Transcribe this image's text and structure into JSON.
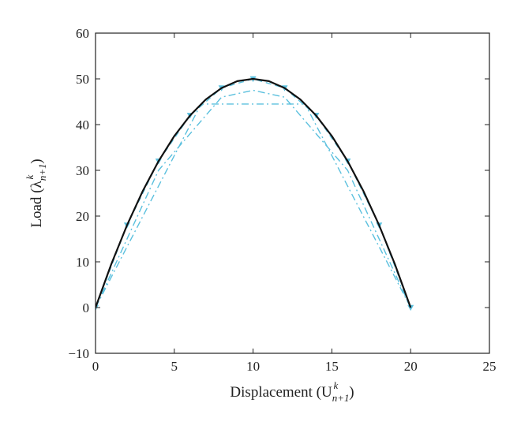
{
  "chart_data": {
    "type": "line",
    "title": "",
    "xlabel": {
      "main": "Displacement (U",
      "sub": "n+1",
      "sup": "k",
      "close": ")"
    },
    "ylabel": {
      "main": "Load (λ",
      "sub": "n+1",
      "sup": "k",
      "close": ")"
    },
    "xlim": [
      0,
      25
    ],
    "ylim": [
      -10,
      60
    ],
    "xticks": [
      "0",
      "5",
      "10",
      "15",
      "20",
      "25"
    ],
    "yticks": [
      "−10",
      "0",
      "10",
      "20",
      "30",
      "40",
      "50",
      "60"
    ],
    "grid": false,
    "legend": "none",
    "series": [
      {
        "style": "solid",
        "color": "#111111",
        "x": [
          0,
          1,
          2,
          3,
          4,
          5,
          6,
          7,
          8,
          9,
          10,
          11,
          12,
          13,
          14,
          15,
          16,
          17,
          18,
          19,
          20
        ],
        "y": [
          0,
          9.5,
          18,
          25.5,
          32,
          37.5,
          42,
          45.5,
          48,
          49.5,
          50,
          49.5,
          48,
          45.5,
          42,
          37.5,
          32,
          25.5,
          18,
          9.5,
          0
        ]
      },
      {
        "style": "dashed",
        "color": "#5bc0de",
        "marker": "triangle-down",
        "x": [
          0,
          2,
          4,
          6,
          8,
          10,
          12,
          14,
          16,
          18,
          20
        ],
        "y": [
          0,
          18,
          32,
          42,
          48,
          50,
          48,
          42,
          32,
          18,
          0
        ]
      },
      {
        "style": "dashdot",
        "color": "#5bc0de",
        "x": [
          0,
          4,
          8,
          10,
          12,
          16,
          20
        ],
        "y": [
          0,
          30,
          46,
          47.5,
          46,
          30,
          0
        ]
      },
      {
        "style": "dashdot",
        "color": "#5bc0de",
        "x": [
          0,
          6.7,
          13.3,
          20
        ],
        "y": [
          0,
          44.5,
          44.5,
          0
        ]
      }
    ]
  }
}
